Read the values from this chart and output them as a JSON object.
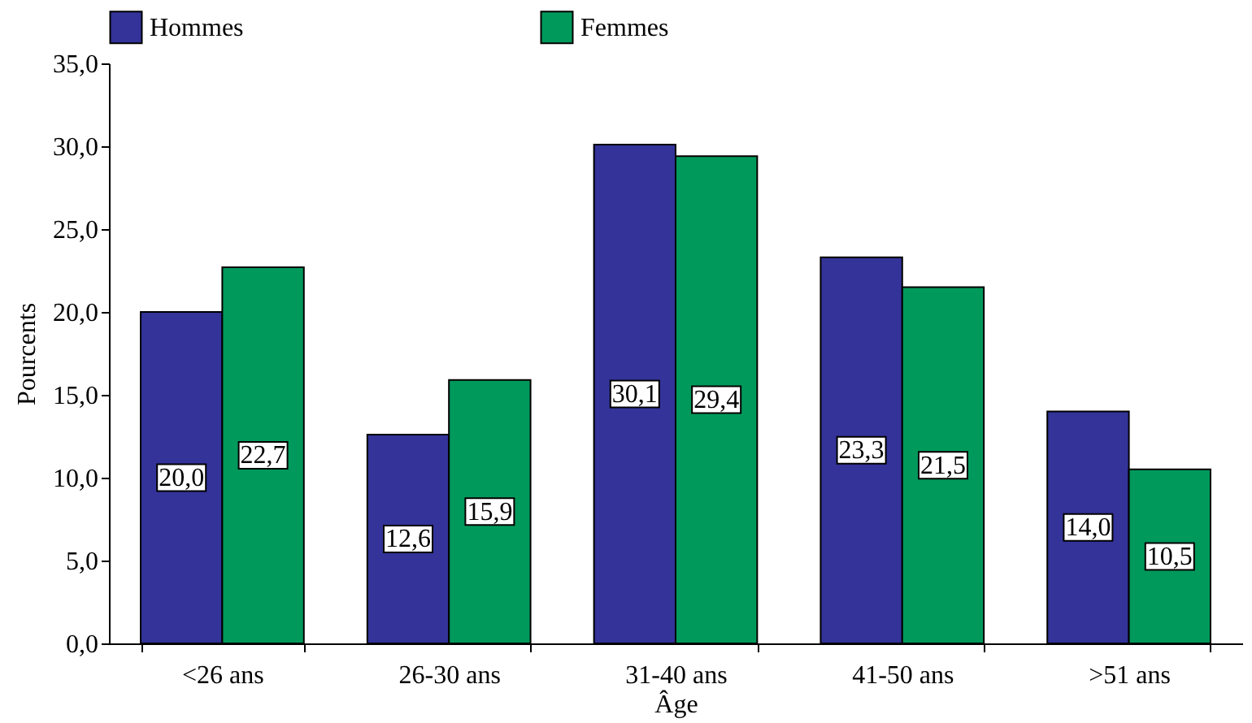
{
  "chart_data": {
    "type": "bar",
    "xlabel": "Âge",
    "ylabel": "Pourcents",
    "categories": [
      "<26 ans",
      "26-30 ans",
      "31-40 ans",
      "41-50 ans",
      ">51 ans"
    ],
    "series": [
      {
        "name": "Hommes",
        "color": "#333399",
        "values": [
          20.0,
          12.6,
          30.1,
          23.3,
          14.0
        ],
        "value_labels": [
          "20,0",
          "12,6",
          "30,1",
          "23,3",
          "14,0"
        ]
      },
      {
        "name": "Femmes",
        "color": "#00995c",
        "values": [
          22.7,
          15.9,
          29.4,
          21.5,
          10.5
        ],
        "value_labels": [
          "22,7",
          "15,9",
          "29,4",
          "21,5",
          "10,5"
        ]
      }
    ],
    "ylim": [
      0,
      35
    ],
    "yticks": [
      {
        "value": 0,
        "label": "0,0"
      },
      {
        "value": 5,
        "label": "5,0"
      },
      {
        "value": 10,
        "label": "10,0"
      },
      {
        "value": 15,
        "label": "15,0"
      },
      {
        "value": 20,
        "label": "20,0"
      },
      {
        "value": 25,
        "label": "25,0"
      },
      {
        "value": 30,
        "label": "30,0"
      },
      {
        "value": 35,
        "label": "35,0"
      }
    ],
    "grid": false,
    "legend": "top"
  }
}
